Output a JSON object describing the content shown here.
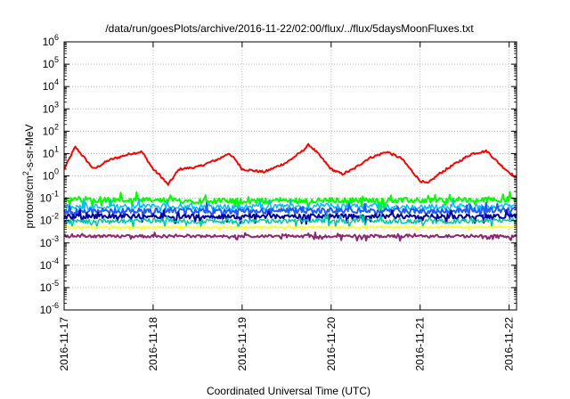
{
  "chart_data": {
    "type": "line",
    "title": "/data/run/goesPlots/archive/2016-11-22/02:00/flux/../flux/5daysMoonFluxes.txt",
    "xlabel": "Coordinated Universal Time (UTC)",
    "ylabel": "protons/cm²-s-sr-MeV",
    "ylabel_parts": {
      "pre": "protons/cm",
      "sup": "2",
      "post": "-s-sr-MeV"
    },
    "y_scale": "log",
    "ylim": [
      1e-06,
      1000000.0
    ],
    "y_ticks": [
      {
        "value": 1e-06,
        "base": "10",
        "exp": "-6"
      },
      {
        "value": 1e-05,
        "base": "10",
        "exp": "-5"
      },
      {
        "value": 0.0001,
        "base": "10",
        "exp": "-4"
      },
      {
        "value": 0.001,
        "base": "10",
        "exp": "-3"
      },
      {
        "value": 0.01,
        "base": "10",
        "exp": "-2"
      },
      {
        "value": 0.1,
        "base": "10",
        "exp": "-1"
      },
      {
        "value": 1,
        "base": "10",
        "exp": "0"
      },
      {
        "value": 10,
        "base": "10",
        "exp": "1"
      },
      {
        "value": 100,
        "base": "10",
        "exp": "2"
      },
      {
        "value": 1000,
        "base": "10",
        "exp": "3"
      },
      {
        "value": 10000,
        "base": "10",
        "exp": "4"
      },
      {
        "value": 100000,
        "base": "10",
        "exp": "5"
      },
      {
        "value": 1000000,
        "base": "10",
        "exp": "6"
      }
    ],
    "xlim": [
      "2016-11-17",
      "2016-11-22T02:00"
    ],
    "x_ticks": [
      "2016-11-17",
      "2016-11-18",
      "2016-11-19",
      "2016-11-20",
      "2016-11-21",
      "2016-11-22"
    ],
    "grid": true,
    "legend": "none",
    "series": [
      {
        "color": "#ff0000",
        "width": 2,
        "noise": 0.05,
        "points": [
          [
            "2016-11-17T00:00",
            2.0
          ],
          [
            "2016-11-17T03:00",
            20
          ],
          [
            "2016-11-17T06:00",
            5
          ],
          [
            "2016-11-17T08:00",
            2
          ],
          [
            "2016-11-17T12:00",
            5
          ],
          [
            "2016-11-17T18:00",
            10
          ],
          [
            "2016-11-17T21:00",
            12
          ],
          [
            "2016-11-18T00:00",
            2
          ],
          [
            "2016-11-18T02:00",
            1
          ],
          [
            "2016-11-18T04:00",
            0.4
          ],
          [
            "2016-11-18T07:00",
            2
          ],
          [
            "2016-11-18T12:00",
            2.5
          ],
          [
            "2016-11-18T18:00",
            6
          ],
          [
            "2016-11-18T20:00",
            10
          ],
          [
            "2016-11-18T22:00",
            6
          ],
          [
            "2016-11-19T00:00",
            2
          ],
          [
            "2016-11-19T06:00",
            1.5
          ],
          [
            "2016-11-19T12:00",
            4
          ],
          [
            "2016-11-19T16:00",
            12
          ],
          [
            "2016-11-19T18:00",
            25
          ],
          [
            "2016-11-19T20:00",
            12
          ],
          [
            "2016-11-20T00:00",
            2
          ],
          [
            "2016-11-20T03:00",
            1.2
          ],
          [
            "2016-11-20T06:00",
            2
          ],
          [
            "2016-11-20T10:00",
            6
          ],
          [
            "2016-11-20T15:00",
            12
          ],
          [
            "2016-11-20T19:00",
            6
          ],
          [
            "2016-11-20T22:00",
            1.5
          ],
          [
            "2016-11-21T00:00",
            0.6
          ],
          [
            "2016-11-21T02:00",
            0.45
          ],
          [
            "2016-11-21T05:00",
            1.2
          ],
          [
            "2016-11-21T10:00",
            4
          ],
          [
            "2016-11-21T14:00",
            10
          ],
          [
            "2016-11-21T18:00",
            13
          ],
          [
            "2016-11-21T21:00",
            4
          ],
          [
            "2016-11-21T23:00",
            2
          ],
          [
            "2016-11-22T02:00",
            0.8
          ]
        ]
      },
      {
        "color": "#00ff00",
        "width": 2,
        "noise": 0.12,
        "points": [
          [
            "2016-11-17T00:00",
            0.08
          ],
          [
            "2016-11-17T04:00",
            0.09
          ],
          [
            "2016-11-18T00:00",
            0.08
          ],
          [
            "2016-11-19T00:00",
            0.075
          ],
          [
            "2016-11-20T00:00",
            0.08
          ],
          [
            "2016-11-21T00:00",
            0.08
          ],
          [
            "2016-11-22T02:00",
            0.09
          ]
        ]
      },
      {
        "color": "#00bfff",
        "width": 1.5,
        "noise": 0.12,
        "points": [
          [
            "2016-11-17T00:00",
            0.04
          ],
          [
            "2016-11-18T00:00",
            0.045
          ],
          [
            "2016-11-19T00:00",
            0.04
          ],
          [
            "2016-11-20T00:00",
            0.045
          ],
          [
            "2016-11-21T00:00",
            0.04
          ],
          [
            "2016-11-22T02:00",
            0.045
          ]
        ]
      },
      {
        "color": "#1e5aff",
        "width": 2,
        "noise": 0.12,
        "points": [
          [
            "2016-11-17T00:00",
            0.025
          ],
          [
            "2016-11-18T00:00",
            0.028
          ],
          [
            "2016-11-19T00:00",
            0.026
          ],
          [
            "2016-11-20T00:00",
            0.028
          ],
          [
            "2016-11-21T00:00",
            0.026
          ],
          [
            "2016-11-22T02:00",
            0.03
          ]
        ]
      },
      {
        "color": "#0000a0",
        "width": 2,
        "noise": 0.1,
        "points": [
          [
            "2016-11-17T00:00",
            0.015
          ],
          [
            "2016-11-18T00:00",
            0.016
          ],
          [
            "2016-11-19T00:00",
            0.015
          ],
          [
            "2016-11-20T00:00",
            0.016
          ],
          [
            "2016-11-21T00:00",
            0.015
          ],
          [
            "2016-11-22T02:00",
            0.016
          ]
        ]
      },
      {
        "color": "#00c8a0",
        "width": 1.5,
        "noise": 0.1,
        "points": [
          [
            "2016-11-17T00:00",
            0.009
          ],
          [
            "2016-11-18T00:00",
            0.01
          ],
          [
            "2016-11-19T00:00",
            0.009
          ],
          [
            "2016-11-20T00:00",
            0.01
          ],
          [
            "2016-11-21T00:00",
            0.009
          ],
          [
            "2016-11-22T02:00",
            0.01
          ]
        ]
      },
      {
        "color": "#ffff33",
        "width": 2,
        "noise": 0.03,
        "points": [
          [
            "2016-11-17T00:00",
            0.005
          ],
          [
            "2016-11-18T00:00",
            0.005
          ],
          [
            "2016-11-19T00:00",
            0.005
          ],
          [
            "2016-11-20T00:00",
            0.005
          ],
          [
            "2016-11-21T00:00",
            0.005
          ],
          [
            "2016-11-22T02:00",
            0.005
          ]
        ]
      },
      {
        "color": "#8b2a6b",
        "width": 2,
        "noise": 0.06,
        "points": [
          [
            "2016-11-17T00:00",
            0.002
          ],
          [
            "2016-11-18T00:00",
            0.002
          ],
          [
            "2016-11-19T00:00",
            0.002
          ],
          [
            "2016-11-20T00:00",
            0.002
          ],
          [
            "2016-11-21T00:00",
            0.002
          ],
          [
            "2016-11-22T02:00",
            0.002
          ]
        ]
      }
    ]
  }
}
